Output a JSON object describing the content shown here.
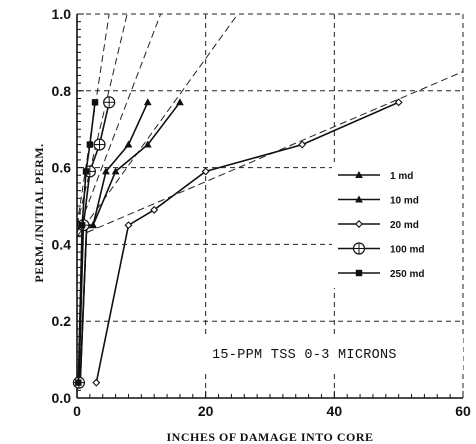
{
  "chart_data": {
    "type": "line",
    "title": "",
    "xlabel": "INCHES OF DAMAGE INTO CORE",
    "ylabel": "PERM./INITIAL PERM.",
    "xlim": [
      0,
      60
    ],
    "ylim": [
      0.0,
      1.0
    ],
    "x_ticks": [
      "0",
      "20",
      "40",
      "60"
    ],
    "y_ticks": [
      "0.0",
      "0.2",
      "0.4",
      "0.6",
      "0.8",
      "1.0"
    ],
    "grid": "dashed",
    "legend_position": "right-middle",
    "annotation": "15-PPM TSS 0-3 MICRONS",
    "series": [
      {
        "name": "1 md",
        "marker": "triangle",
        "x": [
          0.5,
          1.5,
          2.5,
          6,
          11,
          16
        ],
        "y": [
          0.04,
          0.45,
          0.45,
          0.59,
          0.66,
          0.77
        ]
      },
      {
        "name": "10 md",
        "marker": "triangle",
        "x": [
          0.5,
          1.5,
          2.5,
          4.5,
          8,
          11
        ],
        "y": [
          0.04,
          0.45,
          0.45,
          0.59,
          0.66,
          0.77
        ]
      },
      {
        "name": "20 md",
        "marker": "diamond",
        "x": [
          3,
          8,
          12,
          20,
          35,
          50
        ],
        "y": [
          0.04,
          0.45,
          0.49,
          0.59,
          0.66,
          0.77
        ]
      },
      {
        "name": "100 md",
        "marker": "circle-plus",
        "x": [
          0.3,
          1,
          2,
          3.5,
          5
        ],
        "y": [
          0.04,
          0.45,
          0.59,
          0.66,
          0.77
        ]
      },
      {
        "name": "250 md",
        "marker": "square",
        "x": [
          0.2,
          0.8,
          1.4,
          2,
          2.8
        ],
        "y": [
          0.04,
          0.45,
          0.59,
          0.66,
          0.77
        ]
      }
    ],
    "trend_lines": [
      {
        "x": [
          0,
          25
        ],
        "y": [
          0.42,
          1.0
        ]
      },
      {
        "x": [
          0,
          13
        ],
        "y": [
          0.43,
          1.0
        ]
      },
      {
        "x": [
          0,
          7.8
        ],
        "y": [
          0.45,
          1.0
        ]
      },
      {
        "x": [
          0,
          5
        ],
        "y": [
          0.45,
          1.0
        ]
      },
      {
        "x": [
          0,
          60
        ],
        "y": [
          0.42,
          0.85
        ]
      }
    ]
  }
}
